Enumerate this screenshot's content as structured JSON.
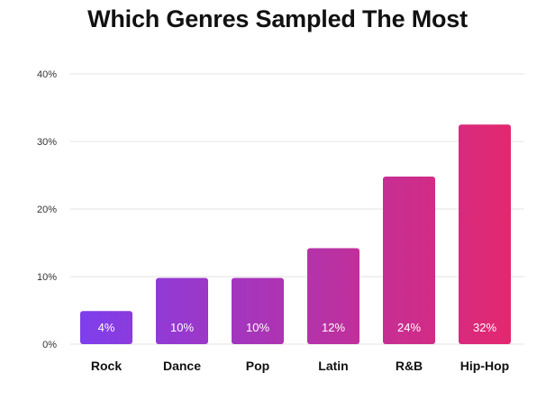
{
  "chart_data": {
    "type": "bar",
    "title": "Which Genres Sampled The Most",
    "xlabel": "",
    "ylabel": "",
    "categories": [
      "Rock",
      "Dance",
      "Pop",
      "Latin",
      "R&B",
      "Hip-Hop"
    ],
    "values": [
      4,
      10,
      10,
      12,
      24,
      32
    ],
    "bar_heights_read": [
      4.9,
      9.8,
      9.8,
      14.2,
      24.8,
      32.5
    ],
    "data_labels": [
      "4%",
      "10%",
      "10%",
      "12%",
      "24%",
      "32%"
    ],
    "ylim": [
      0,
      40
    ],
    "yticks": [
      0,
      10,
      20,
      30,
      40
    ],
    "ytick_labels": [
      "0%",
      "10%",
      "20%",
      "30%",
      "40%"
    ],
    "grid": true,
    "legend": "none",
    "colors": {
      "gradient_start": "#7b3ff0",
      "gradient_end": "#e8276a",
      "grid": "#e3e3e3"
    }
  }
}
